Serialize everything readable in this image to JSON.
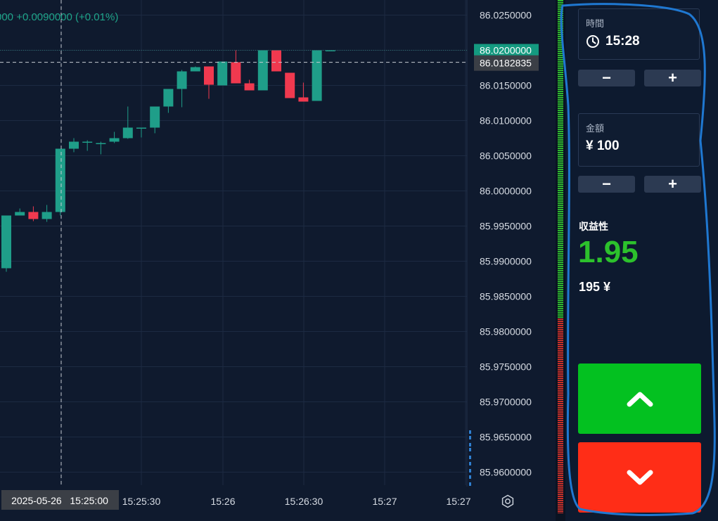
{
  "chart": {
    "change_text": "000  +0.0090000 (+0.01%)",
    "current_price_label": "86.0200000",
    "crosshair_price_label": "86.0182835",
    "crosshair_time_label": "2025-05-26   15:25:00",
    "price_ticks": [
      "86.0250000",
      "86.0200000",
      "86.0150000",
      "86.0100000",
      "86.0050000",
      "86.0000000",
      "85.9950000",
      "85.9900000",
      "85.9850000",
      "85.9800000",
      "85.9750000",
      "85.9700000",
      "85.9650000",
      "85.9600000"
    ],
    "time_ticks": [
      "15:25:30",
      "15:26",
      "15:26:30",
      "15:27",
      "15:27"
    ],
    "colors": {
      "up": "#1f9e89",
      "down": "#f0394f",
      "bg": "#0f1a2e"
    },
    "settings_icon": "gear-icon"
  },
  "chart_data": {
    "type": "candlestick",
    "ylim": [
      85.958,
      86.027
    ],
    "candles": [
      {
        "o": 85.989,
        "h": 85.9965,
        "l": 85.9885,
        "c": 85.9965
      },
      {
        "o": 85.9965,
        "h": 85.9975,
        "l": 85.9965,
        "c": 85.997
      },
      {
        "o": 85.997,
        "h": 85.9978,
        "l": 85.9957,
        "c": 85.996
      },
      {
        "o": 85.996,
        "h": 85.998,
        "l": 85.9956,
        "c": 85.997
      },
      {
        "o": 85.997,
        "h": 86.006,
        "l": 85.9965,
        "c": 86.006
      },
      {
        "o": 86.006,
        "h": 86.0075,
        "l": 86.0055,
        "c": 86.007
      },
      {
        "o": 86.007,
        "h": 86.0072,
        "l": 86.0057,
        "c": 86.007
      },
      {
        "o": 86.0068,
        "h": 86.007,
        "l": 86.0052,
        "c": 86.0068
      },
      {
        "o": 86.007,
        "h": 86.0084,
        "l": 86.0068,
        "c": 86.0075
      },
      {
        "o": 86.0075,
        "h": 86.012,
        "l": 86.0074,
        "c": 86.009
      },
      {
        "o": 86.009,
        "h": 86.009,
        "l": 86.0076,
        "c": 86.009
      },
      {
        "o": 86.009,
        "h": 86.012,
        "l": 86.0082,
        "c": 86.012
      },
      {
        "o": 86.012,
        "h": 86.0145,
        "l": 86.0111,
        "c": 86.0145
      },
      {
        "o": 86.0145,
        "h": 86.0172,
        "l": 86.0119,
        "c": 86.017
      },
      {
        "o": 86.017,
        "h": 86.0177,
        "l": 86.017,
        "c": 86.0176
      },
      {
        "o": 86.0177,
        "h": 86.0177,
        "l": 86.0131,
        "c": 86.0151
      },
      {
        "o": 86.015,
        "h": 86.0184,
        "l": 86.015,
        "c": 86.0184
      },
      {
        "o": 86.0183,
        "h": 86.02,
        "l": 86.0153,
        "c": 86.0153
      },
      {
        "o": 86.0153,
        "h": 86.0158,
        "l": 86.0143,
        "c": 86.0143
      },
      {
        "o": 86.0143,
        "h": 86.02,
        "l": 86.0143,
        "c": 86.02
      },
      {
        "o": 86.02,
        "h": 86.02,
        "l": 86.017,
        "c": 86.017
      },
      {
        "o": 86.0168,
        "h": 86.0168,
        "l": 86.0132,
        "c": 86.0132
      },
      {
        "o": 86.0133,
        "h": 86.0154,
        "l": 86.0127,
        "c": 86.0127
      },
      {
        "o": 86.0128,
        "h": 86.02,
        "l": 86.0128,
        "c": 86.02
      },
      {
        "o": 86.02,
        "h": 86.02,
        "l": 86.02,
        "c": 86.02
      }
    ]
  },
  "panel": {
    "time": {
      "caption": "時間",
      "value": "15:28",
      "icon": "clock-icon",
      "minus": "−",
      "plus": "+"
    },
    "amount": {
      "caption": "金額",
      "value": "¥ 100",
      "minus": "−",
      "plus": "+"
    },
    "payout": {
      "caption": "収益性",
      "value": "1.95",
      "amount": "195 ¥",
      "color": "#2cc12c"
    },
    "up_button": {
      "icon": "chevron-up-icon",
      "color": "#03c120"
    },
    "down_button": {
      "icon": "chevron-down-icon",
      "color": "#ff2d17"
    }
  },
  "sentiment": {
    "up_fraction": 0.62,
    "up_color": "#2eb82e",
    "down_color": "#c8302a"
  }
}
